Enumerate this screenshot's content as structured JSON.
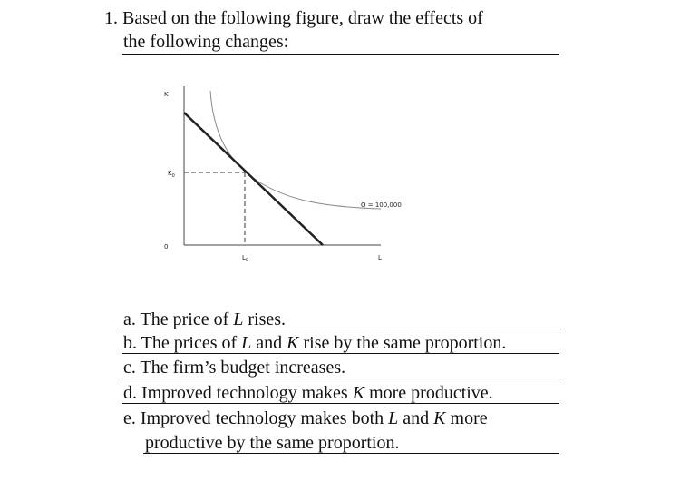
{
  "question": {
    "lines": [
      "1. Based on the following figure, draw the effects of",
      "the following changes:"
    ]
  },
  "figure": {
    "k_axis": "K",
    "k0": {
      "text": "K",
      "sub": "0"
    },
    "origin": "0",
    "l0": {
      "text": "L",
      "sub": "0"
    },
    "l_axis": "L",
    "q_label": "Q = 100,000"
  },
  "items": [
    [
      "a. The price of ",
      "L",
      " rises."
    ],
    [
      "b. The prices of ",
      "L",
      " and ",
      "K",
      " rise by the same proportion."
    ],
    [
      "c. The firm’s budget increases."
    ],
    [
      "d. Improved technology makes ",
      "K",
      " more productive."
    ],
    [
      "e. Improved technology makes both ",
      "L",
      " and ",
      "K",
      " more"
    ],
    [
      "productive by the same proportion."
    ]
  ]
}
